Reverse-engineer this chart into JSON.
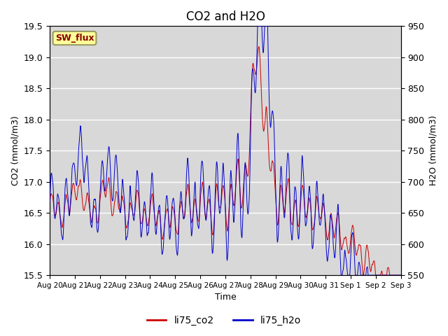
{
  "title": "CO2 and H2O",
  "xlabel": "Time",
  "ylabel_left": "CO2 (mmol/m3)",
  "ylabel_right": "H2O (mmol/m3)",
  "ylim_left": [
    15.5,
    19.5
  ],
  "ylim_right": [
    550,
    950
  ],
  "plot_bg_color": "#d8d8d8",
  "line_co2_color": "#cc0000",
  "line_h2o_color": "#0000cc",
  "annotation_text": "SW_flux",
  "annotation_facecolor": "#ffff99",
  "annotation_edgecolor": "#999966",
  "annotation_textcolor": "#880000",
  "legend_co2": "li75_co2",
  "legend_h2o": "li75_h2o",
  "x_tick_labels": [
    "Aug 20",
    "Aug 21",
    "Aug 22",
    "Aug 23",
    "Aug 24",
    "Aug 25",
    "Aug 26",
    "Aug 27",
    "Aug 28",
    "Aug 29",
    "Aug 30",
    "Aug 31",
    "Sep 1",
    "Sep 2",
    "Sep 3"
  ],
  "duration_days": 14,
  "seed": 7
}
